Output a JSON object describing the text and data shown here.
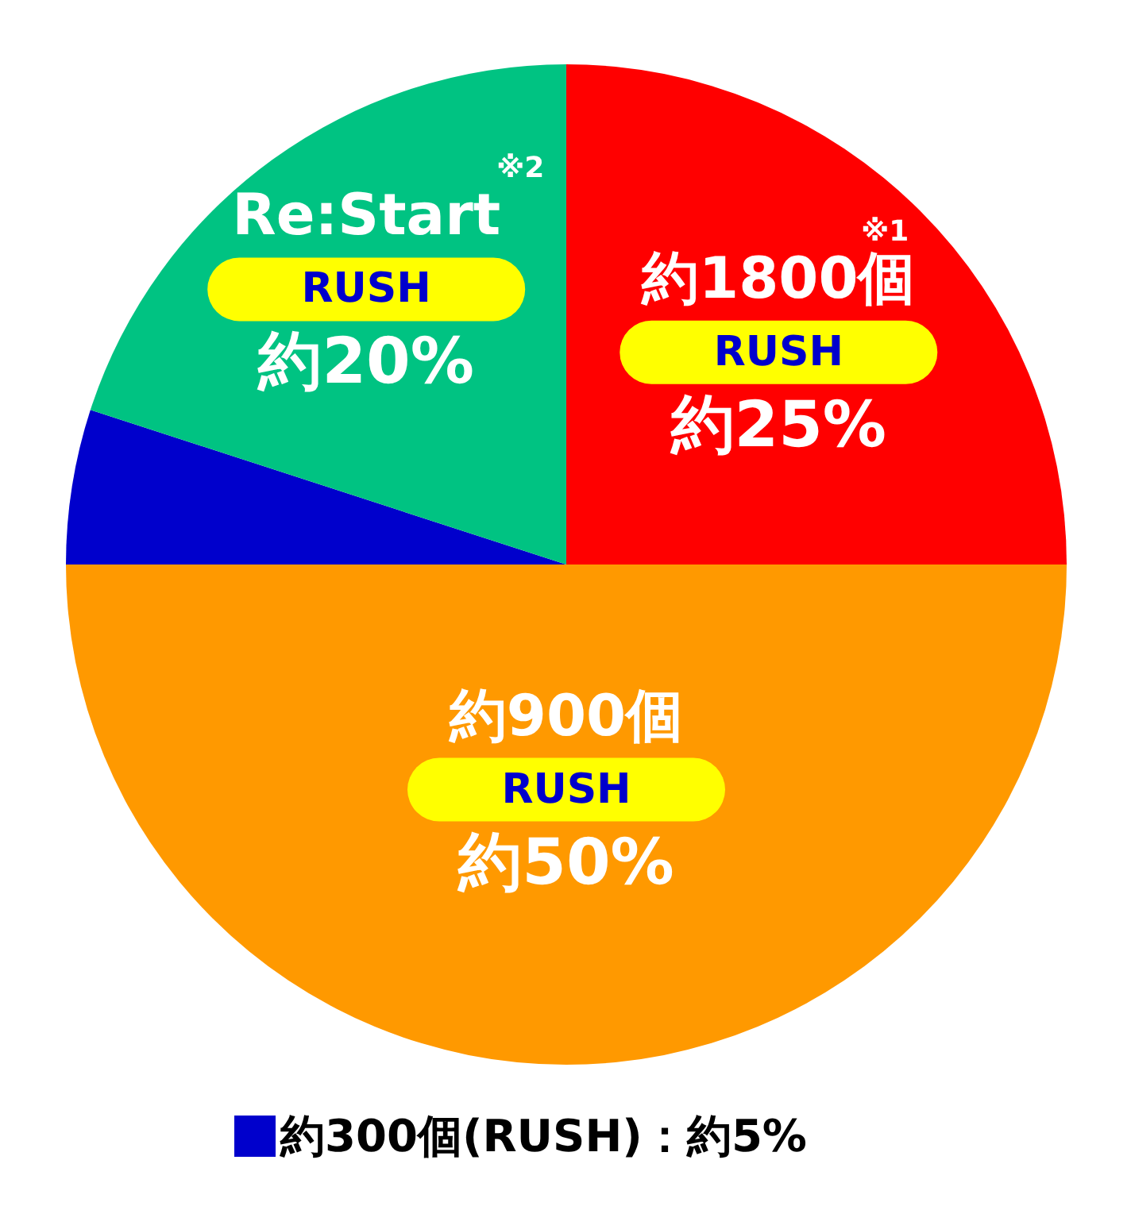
{
  "chart_data": {
    "type": "pie",
    "categories": [
      "約1800個",
      "約900個",
      "約300個(RUSH)：約5%",
      "Re:Start"
    ],
    "values": [
      25,
      50,
      5,
      20
    ],
    "colors": [
      "#ff0000",
      "#ff9900",
      "#0000cc",
      "#00c382"
    ],
    "value_labels": [
      "約25%",
      "約50%",
      null,
      "約20%"
    ],
    "legend": "bottom",
    "annotations": [
      {
        "text": "RUSH",
        "x": "約1800個"
      },
      {
        "text": "※1",
        "x": "約1800個"
      },
      {
        "text": "RUSH",
        "x": "約900個"
      },
      {
        "text": "RUSH",
        "x": "Re:Start"
      },
      {
        "text": "※2",
        "x": "Re:Start"
      }
    ]
  }
}
